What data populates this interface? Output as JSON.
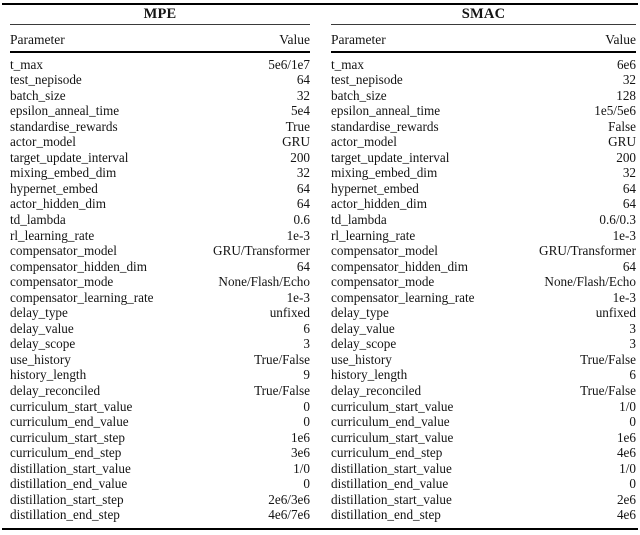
{
  "tables": [
    {
      "title": "MPE",
      "columns": {
        "parameter": "Parameter",
        "value": "Value"
      },
      "rows": [
        [
          "t_max",
          "5e6/1e7"
        ],
        [
          "test_nepisode",
          "64"
        ],
        [
          "batch_size",
          "32"
        ],
        [
          "epsilon_anneal_time",
          "5e4"
        ],
        [
          "standardise_rewards",
          "True"
        ],
        [
          "actor_model",
          "GRU"
        ],
        [
          "target_update_interval",
          "200"
        ],
        [
          "mixing_embed_dim",
          "32"
        ],
        [
          "hypernet_embed",
          "64"
        ],
        [
          "actor_hidden_dim",
          "64"
        ],
        [
          "td_lambda",
          "0.6"
        ],
        [
          "rl_learning_rate",
          "1e-3"
        ],
        [
          "compensator_model",
          "GRU/Transformer"
        ],
        [
          "compensator_hidden_dim",
          "64"
        ],
        [
          "compensator_mode",
          "None/Flash/Echo"
        ],
        [
          "compensator_learning_rate",
          "1e-3"
        ],
        [
          "delay_type",
          "unfixed"
        ],
        [
          "delay_value",
          "6"
        ],
        [
          "delay_scope",
          "3"
        ],
        [
          "use_history",
          "True/False"
        ],
        [
          "history_length",
          "9"
        ],
        [
          "delay_reconciled",
          "True/False"
        ],
        [
          "curriculum_start_value",
          "0"
        ],
        [
          "curriculum_end_value",
          "0"
        ],
        [
          "curriculum_start_step",
          "1e6"
        ],
        [
          "curriculum_end_step",
          "3e6"
        ],
        [
          "distillation_start_value",
          "1/0"
        ],
        [
          "distillation_end_value",
          "0"
        ],
        [
          "distillation_start_step",
          "2e6/3e6"
        ],
        [
          "distillation_end_step",
          "4e6/7e6"
        ]
      ]
    },
    {
      "title": "SMAC",
      "columns": {
        "parameter": "Parameter",
        "value": "Value"
      },
      "rows": [
        [
          "t_max",
          "6e6"
        ],
        [
          "test_nepisode",
          "32"
        ],
        [
          "batch_size",
          "128"
        ],
        [
          "epsilon_anneal_time",
          "1e5/5e6"
        ],
        [
          "standardise_rewards",
          "False"
        ],
        [
          "actor_model",
          "GRU"
        ],
        [
          "target_update_interval",
          "200"
        ],
        [
          "mixing_embed_dim",
          "32"
        ],
        [
          "hypernet_embed",
          "64"
        ],
        [
          "actor_hidden_dim",
          "64"
        ],
        [
          "td_lambda",
          "0.6/0.3"
        ],
        [
          "rl_learning_rate",
          "1e-3"
        ],
        [
          "compensator_model",
          "GRU/Transformer"
        ],
        [
          "compensator_hidden_dim",
          "64"
        ],
        [
          "compensator_mode",
          "None/Flash/Echo"
        ],
        [
          "compensator_learning_rate",
          "1e-3"
        ],
        [
          "delay_type",
          "unfixed"
        ],
        [
          "delay_value",
          "3"
        ],
        [
          "delay_scope",
          "3"
        ],
        [
          "use_history",
          "True/False"
        ],
        [
          "history_length",
          "6"
        ],
        [
          "delay_reconciled",
          "True/False"
        ],
        [
          "curriculum_start_value",
          "1/0"
        ],
        [
          "curriculum_end_value",
          "0"
        ],
        [
          "curriculum_start_value",
          "1e6"
        ],
        [
          "curriculum_end_step",
          "4e6"
        ],
        [
          "distillation_start_value",
          "1/0"
        ],
        [
          "distillation_end_value",
          "0"
        ],
        [
          "distillation_start_value",
          "2e6"
        ],
        [
          "distillation_end_step",
          "4e6"
        ]
      ]
    }
  ],
  "colors": {
    "text": "#141414",
    "rule": "#000000",
    "background": "#ffffff"
  }
}
